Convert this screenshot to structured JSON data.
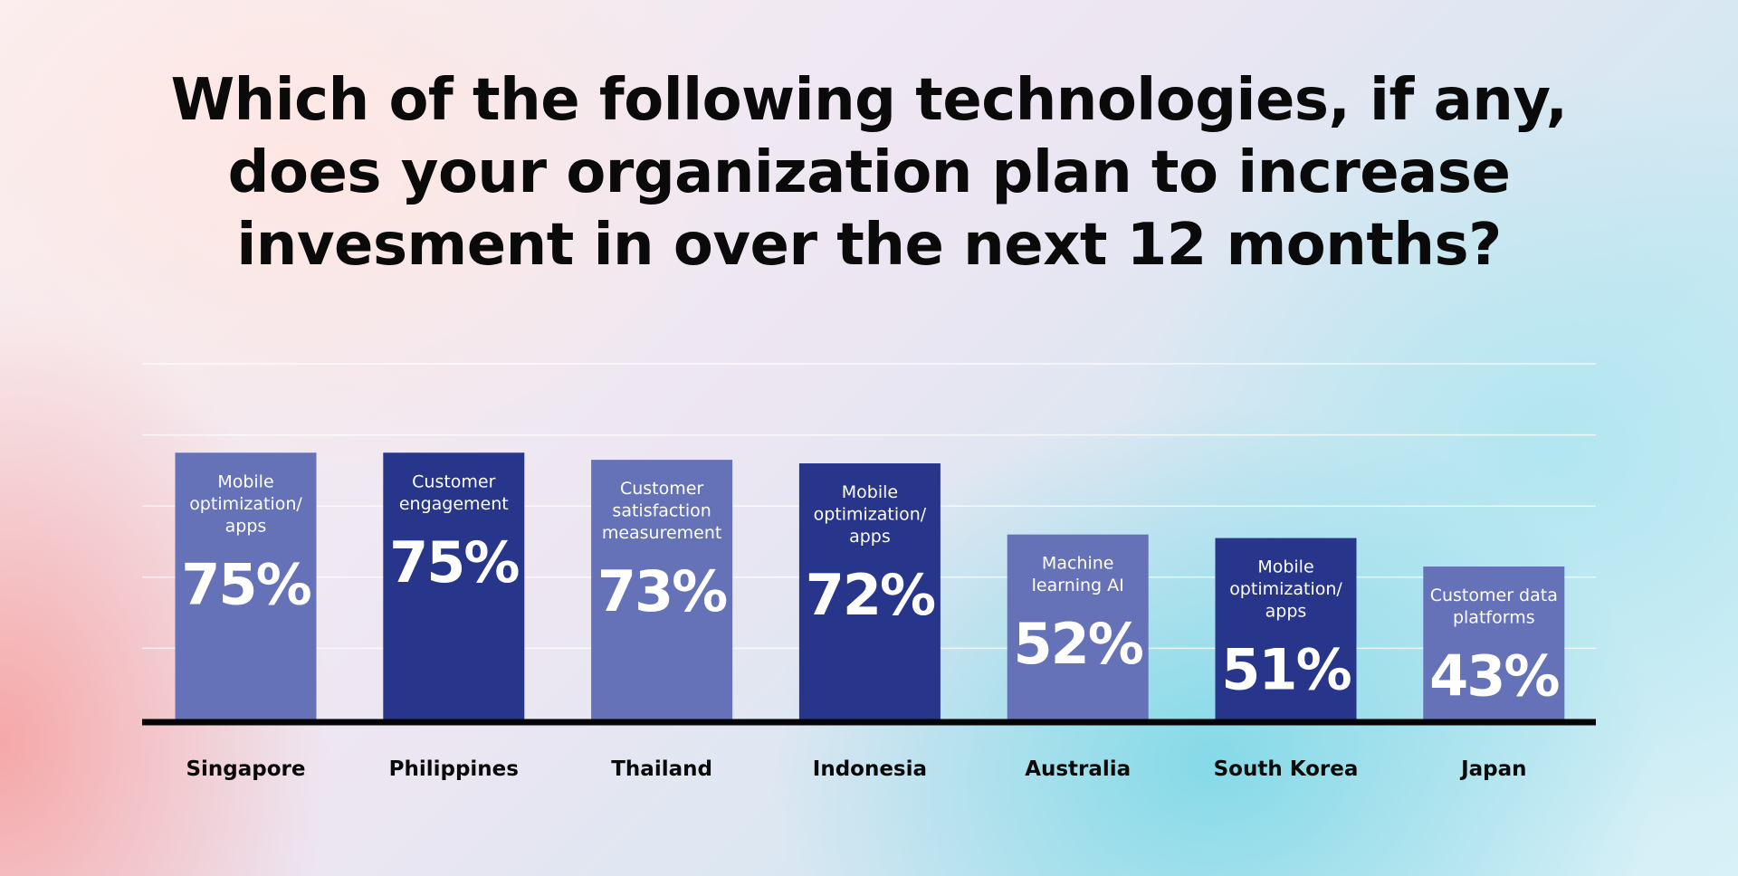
{
  "chart_data": {
    "type": "bar",
    "title": "Which of the following technologies, if any, does your organization plan to increase invesment in over the next 12 months?",
    "title_lines": [
      "Which of the following technologies, if any,",
      "does your organization plan to increase",
      "invesment in over the next 12 months?"
    ],
    "categories": [
      "Singapore",
      "Philippines",
      "Thailand",
      "Indonesia",
      "Australia",
      "South Korea",
      "Japan"
    ],
    "values": [
      75,
      75,
      73,
      72,
      52,
      51,
      43
    ],
    "value_labels": [
      "75%",
      "75%",
      "73%",
      "72%",
      "52%",
      "51%",
      "43%"
    ],
    "bar_labels": [
      [
        "Mobile",
        "optimization/",
        "apps"
      ],
      [
        "Customer",
        "engagement"
      ],
      [
        "Customer",
        "satisfaction",
        "measurement"
      ],
      [
        "Mobile",
        "optimization/",
        "apps"
      ],
      [
        "Machine",
        "learning AI"
      ],
      [
        "Mobile",
        "optimization/",
        "apps"
      ],
      [
        "Customer data",
        "platforms"
      ]
    ],
    "bar_colors": [
      "#6672b8",
      "#27358b",
      "#6672b8",
      "#27358b",
      "#6672b8",
      "#27358b",
      "#6672b8"
    ],
    "ylim": [
      0,
      100
    ],
    "grid": true,
    "xlabel": "",
    "ylabel": ""
  }
}
